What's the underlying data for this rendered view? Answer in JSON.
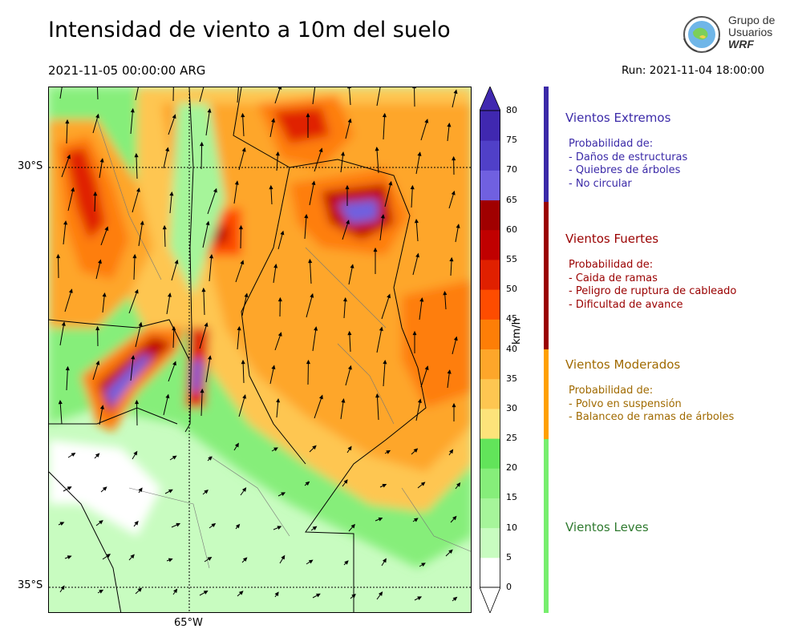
{
  "header": {
    "title": "Intensidad de viento a 10m del suelo",
    "valid_time": "2021-11-05 00:00:00 ARG",
    "run": "Run: 2021-11-04 18:00:00"
  },
  "logo": {
    "line1": "Grupo de",
    "line2": "Usuarios",
    "line3": "WRF"
  },
  "map": {
    "lat_labels": [
      "30°S",
      "35°S"
    ],
    "lon_labels": [
      "65°W"
    ]
  },
  "colorbar": {
    "unit": "km/h",
    "ticks": [
      "0",
      "5",
      "10",
      "15",
      "20",
      "25",
      "30",
      "35",
      "40",
      "45",
      "50",
      "55",
      "60",
      "65",
      "70",
      "75",
      "80"
    ],
    "colors": [
      "#ffffff",
      "#c8fcc0",
      "#a6f59a",
      "#86ee7a",
      "#62e45a",
      "#fde37a",
      "#fec651",
      "#fea62a",
      "#fe7e07",
      "#fe4c00",
      "#e02000",
      "#c00000",
      "#a00000",
      "#7060e0",
      "#5040c8",
      "#4028b0"
    ]
  },
  "categories": [
    {
      "title": "Vientos Extremos",
      "color": "#3b2aa8",
      "lines": [
        "Probabilidad de:",
        "- Daños de estructuras",
        "- Quiebres de árboles",
        "- No circular"
      ]
    },
    {
      "title": "Vientos Fuertes",
      "color": "#9a0000",
      "lines": [
        "Probabilidad de:",
        "- Caida de ramas",
        "- Peligro de ruptura de cableado",
        "- Dificultad de avance"
      ]
    },
    {
      "title": "Vientos Moderados",
      "color": "#a06a00",
      "bar_color": "#ffa000",
      "lines": [
        "Probabilidad de:",
        "- Polvo en suspensión",
        "- Balanceo de ramas de árboles"
      ]
    },
    {
      "title": "Vientos Leves",
      "color": "#2f7a2f",
      "bar_color": "#77ee6e",
      "lines": []
    }
  ]
}
